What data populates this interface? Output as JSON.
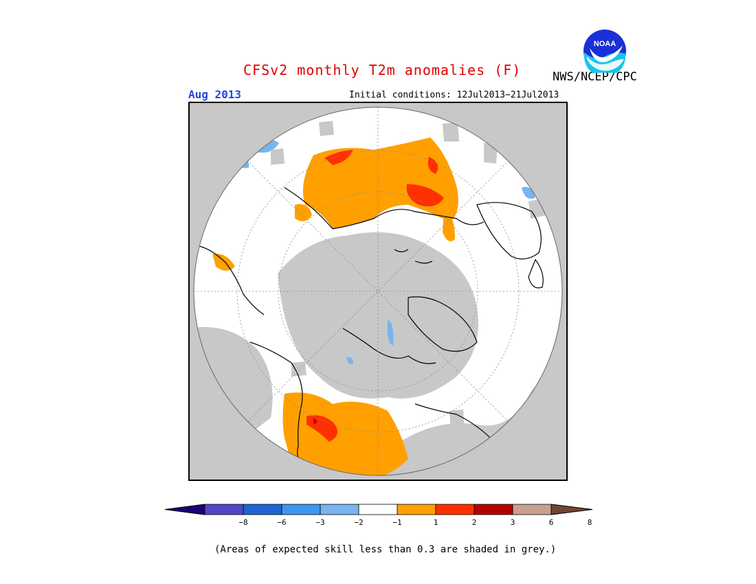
{
  "header": {
    "title": "CFSv2 monthly T2m anomalies (F)",
    "agency": "NWS/NCEP/CPC",
    "logo_text": "NOAA",
    "month": "Aug 2013",
    "initial_conditions": "Initial conditions: 12Jul2013−21Jul2013"
  },
  "colors": {
    "title": "#e00000",
    "month": "#2846d8",
    "grey_skill": "#c8c8c8",
    "white": "#ffffff",
    "orange": "#ffa000",
    "red": "#ff3000",
    "dark_red": "#b40000",
    "light_blue": "#78b4f0"
  },
  "colorbar": {
    "ticks": [
      "−8",
      "−6",
      "−3",
      "−2",
      "−1",
      "1",
      "2",
      "3",
      "6",
      "8"
    ],
    "colors": [
      "#1e0078",
      "#5046c8",
      "#1e64d2",
      "#3c96f0",
      "#78b4f0",
      "#ffffff",
      "#ffa000",
      "#ff3000",
      "#b40000",
      "#c8a08c",
      "#6e4632"
    ]
  },
  "footnote": "(Areas of expected skill less than 0.3 are shaded in grey.)"
}
